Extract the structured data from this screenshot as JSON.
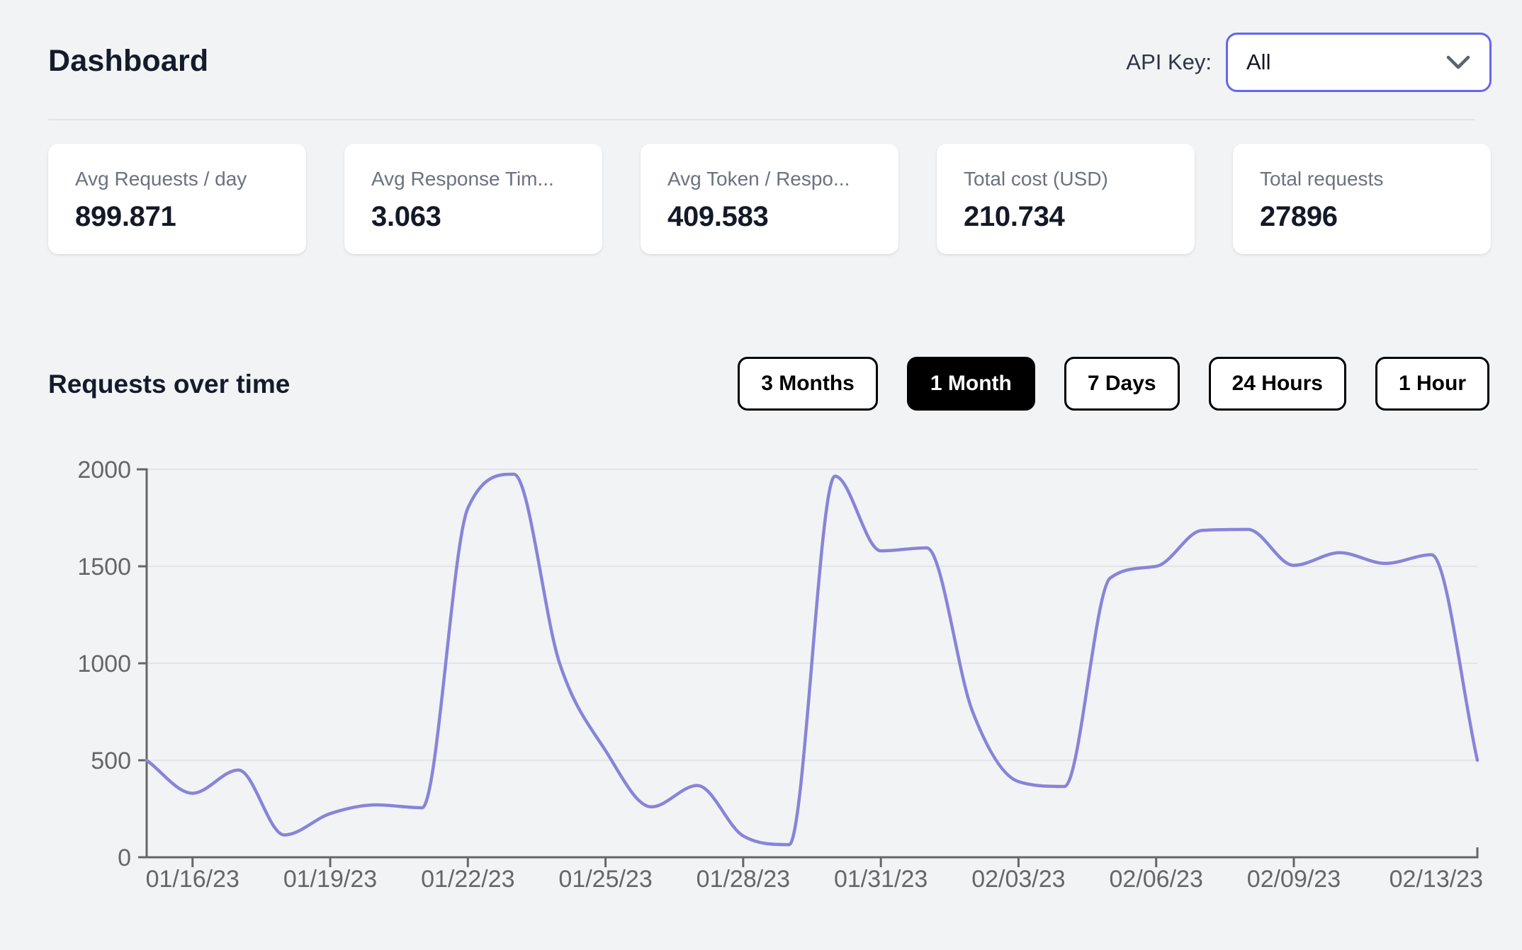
{
  "page": {
    "title": "Dashboard"
  },
  "header": {
    "api_key_label": "API Key:",
    "api_key_value": "All",
    "icons": {
      "dropdown": "chevron-down"
    }
  },
  "stats": [
    {
      "label": "Avg Requests / day",
      "value": "899.871"
    },
    {
      "label": "Avg Response Tim...",
      "value": "3.063"
    },
    {
      "label": "Avg Token / Respo...",
      "value": "409.583"
    },
    {
      "label": "Total cost (USD)",
      "value": "210.734"
    },
    {
      "label": "Total requests",
      "value": "27896"
    }
  ],
  "section": {
    "title": "Requests over time"
  },
  "time_range": {
    "selected": "1 Month",
    "buttons": [
      {
        "label": "3 Months"
      },
      {
        "label": "1 Month"
      },
      {
        "label": "7 Days"
      },
      {
        "label": "24 Hours"
      },
      {
        "label": "1 Hour"
      }
    ]
  },
  "chart_data": {
    "type": "line",
    "title": "Requests over time",
    "curve": "monotone",
    "grid": true,
    "xlabel": "",
    "ylabel": "",
    "ylim": [
      0,
      2000
    ],
    "y_ticks": [
      0,
      500,
      1000,
      1500,
      2000
    ],
    "x": [
      "01/15/23",
      "01/16/23",
      "01/17/23",
      "01/18/23",
      "01/19/23",
      "01/20/23",
      "01/21/23",
      "01/22/23",
      "01/23/23",
      "01/24/23",
      "01/25/23",
      "01/26/23",
      "01/27/23",
      "01/28/23",
      "01/29/23",
      "01/30/23",
      "01/31/23",
      "02/01/23",
      "02/02/23",
      "02/03/23",
      "02/04/23",
      "02/05/23",
      "02/06/23",
      "02/07/23",
      "02/08/23",
      "02/09/23",
      "02/10/23",
      "02/11/23",
      "02/12/23",
      "02/13/23"
    ],
    "values": [
      500,
      330,
      450,
      115,
      225,
      270,
      255,
      1800,
      1975,
      1000,
      550,
      260,
      370,
      110,
      65,
      1965,
      1580,
      1595,
      750,
      390,
      365,
      1440,
      1500,
      1685,
      1690,
      1505,
      1570,
      1515,
      1560,
      500
    ],
    "x_ticks": [
      "01/16/23",
      "01/19/23",
      "01/22/23",
      "01/25/23",
      "01/28/23",
      "01/31/23",
      "02/03/23",
      "02/06/23",
      "02/09/23",
      "02/13/23"
    ],
    "series_name": "Requests",
    "line_color": "#8884d8",
    "axis_color": "#666666",
    "grid_color": "#e3e4e8"
  },
  "colors": {
    "background": "#f2f3f5",
    "card_bg": "#ffffff",
    "accent": "#6366f1",
    "text_dark": "#161b2c",
    "text_gray": "#6b7280",
    "button_selected_bg": "#000000"
  }
}
